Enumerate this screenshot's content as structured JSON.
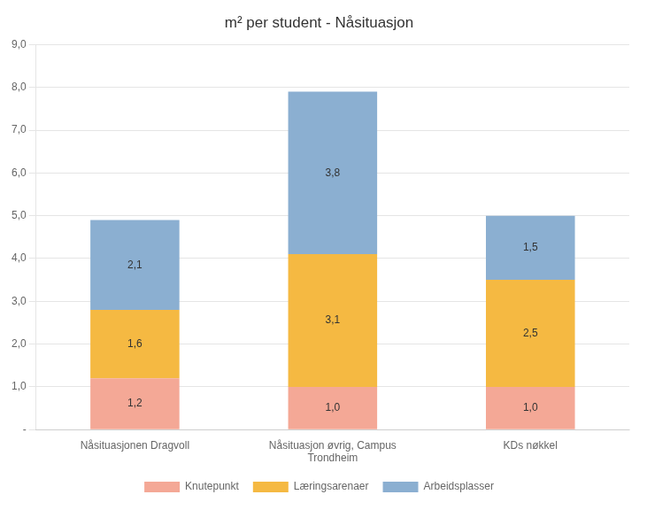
{
  "chart_data": {
    "type": "bar",
    "title": "m² per student - Nåsituasjon",
    "categories": [
      "Nåsituasjonen Dragvoll",
      "Nåsituasjon øvrig, Campus\nTrondheim",
      "KDs nøkkel"
    ],
    "series": [
      {
        "name": "Knutepunkt",
        "color": "#F4A896",
        "values": [
          1.2,
          1.0,
          1.0
        ],
        "value_labels": [
          "1,2",
          "1,0",
          "1,0"
        ]
      },
      {
        "name": "Læringsarenaer",
        "color": "#F5B942",
        "values": [
          1.6,
          3.1,
          2.5
        ],
        "value_labels": [
          "1,6",
          "3,1",
          "2,5"
        ]
      },
      {
        "name": "Arbeidsplasser",
        "color": "#8BAFD1",
        "values": [
          2.1,
          3.8,
          1.5
        ],
        "value_labels": [
          "2,1",
          "3,8",
          "1,5"
        ]
      }
    ],
    "stacked": true,
    "ylim": [
      0,
      9.0
    ],
    "yticks": [
      {
        "value": 0,
        "label": "-"
      },
      {
        "value": 1.0,
        "label": "1,0"
      },
      {
        "value": 2.0,
        "label": "2,0"
      },
      {
        "value": 3.0,
        "label": "3,0"
      },
      {
        "value": 4.0,
        "label": "4,0"
      },
      {
        "value": 5.0,
        "label": "5,0"
      },
      {
        "value": 6.0,
        "label": "6,0"
      },
      {
        "value": 7.0,
        "label": "7,0"
      },
      {
        "value": 8.0,
        "label": "8,0"
      },
      {
        "value": 9.0,
        "label": "9,0"
      }
    ],
    "grid": true,
    "legend": "bottom",
    "data_labels": true
  }
}
